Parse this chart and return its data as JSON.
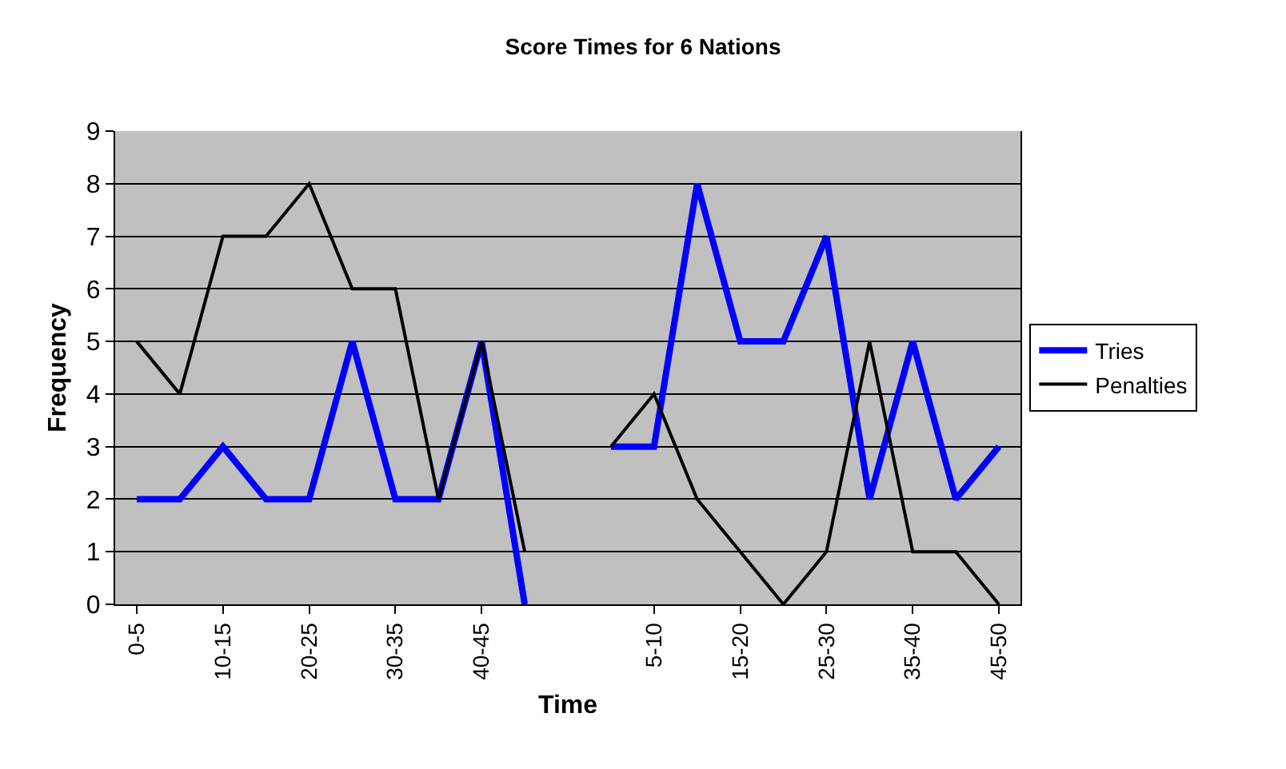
{
  "chart_data": {
    "type": "line",
    "title": "Score Times for 6 Nations",
    "xlabel": "Time",
    "ylabel": "Frequency",
    "categories": [
      "0-5",
      null,
      "10-15",
      null,
      "20-25",
      null,
      "30-35",
      null,
      "40-45",
      null,
      null,
      null,
      "5-10",
      null,
      "15-20",
      null,
      "25-30",
      null,
      "35-40",
      null,
      "45-50"
    ],
    "series": [
      {
        "name": "Tries",
        "color": "#0000ff",
        "values": [
          2,
          2,
          3,
          2,
          2,
          5,
          2,
          2,
          5,
          0,
          null,
          3,
          3,
          8,
          5,
          5,
          7,
          2,
          5,
          2,
          3
        ]
      },
      {
        "name": "Penalties",
        "color": "#000000",
        "values": [
          5,
          4,
          7,
          7,
          8,
          6,
          6,
          2,
          5,
          1,
          null,
          3,
          4,
          2,
          1,
          0,
          1,
          5,
          1,
          1,
          0
        ]
      }
    ],
    "ylim": [
      0,
      9
    ],
    "yticks": [
      0,
      1,
      2,
      3,
      4,
      5,
      6,
      7,
      8,
      9
    ],
    "grid": "y",
    "legend": "right",
    "marker": "none",
    "line_style": "solid"
  }
}
